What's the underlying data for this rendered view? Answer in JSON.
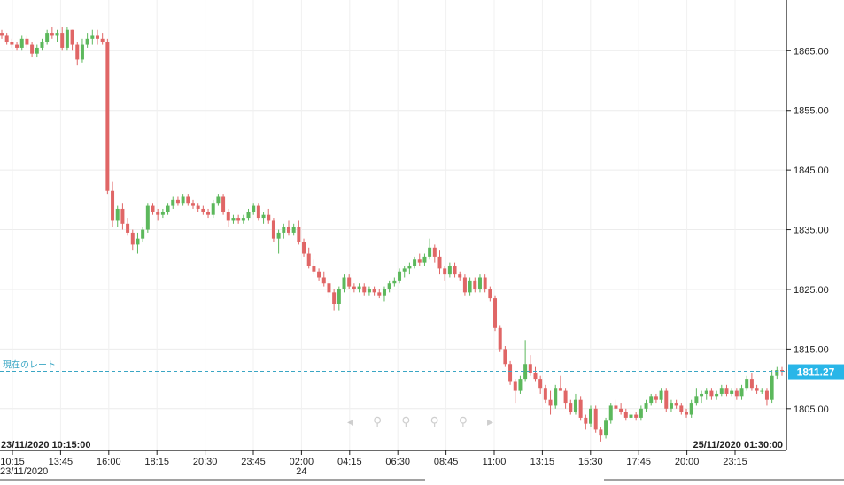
{
  "chart_data": {
    "type": "candlestick",
    "title": "",
    "xlabel": "",
    "ylabel": "",
    "ylim": [
      1798.0,
      1873.5
    ],
    "y_ticks": [
      "1865.00",
      "1855.00",
      "1845.00",
      "1835.00",
      "1825.00",
      "1815.00",
      "1805.00"
    ],
    "x_ticks": [
      "10:15",
      "13:45",
      "16:00",
      "18:15",
      "20:30",
      "23:45",
      "02:00",
      "04:15",
      "06:30",
      "08:45",
      "11:00",
      "13:15",
      "15:30",
      "17:45",
      "20:00",
      "23:15"
    ],
    "date_labels": [
      {
        "text": "23/11/2020",
        "at_tick": "10:15"
      },
      {
        "text": "24",
        "at_tick": "02:00"
      }
    ],
    "range_start": "23/11/2020 10:15:00",
    "range_end": "25/11/2020 01:30:00",
    "current_rate_label": "現在のレート",
    "current_rate": 1811.27,
    "current_rate_text": "1811.27",
    "grid": true,
    "colors": {
      "up": "#5cb85c",
      "down": "#e06666",
      "rate_line": "#3aa6c4",
      "rate_badge": "#29b6e8"
    },
    "candles": [
      [
        1868.0,
        1868.5,
        1867.0,
        1867.5
      ],
      [
        1867.5,
        1868.0,
        1866.0,
        1866.5
      ],
      [
        1866.5,
        1867.0,
        1865.5,
        1866.0
      ],
      [
        1866.0,
        1866.5,
        1865.0,
        1865.5
      ],
      [
        1865.5,
        1867.5,
        1865.0,
        1867.0
      ],
      [
        1867.0,
        1867.5,
        1865.5,
        1866.0
      ],
      [
        1866.0,
        1866.5,
        1864.0,
        1864.5
      ],
      [
        1864.5,
        1866.0,
        1864.0,
        1865.5
      ],
      [
        1865.5,
        1867.0,
        1865.0,
        1866.5
      ],
      [
        1866.5,
        1868.5,
        1866.0,
        1868.0
      ],
      [
        1868.0,
        1869.0,
        1867.0,
        1867.5
      ],
      [
        1867.5,
        1868.5,
        1866.5,
        1868.0
      ],
      [
        1868.0,
        1869.0,
        1865.0,
        1865.5
      ],
      [
        1865.5,
        1869.0,
        1865.0,
        1868.5
      ],
      [
        1868.5,
        1868.5,
        1865.0,
        1866.0
      ],
      [
        1866.0,
        1866.5,
        1862.5,
        1863.5
      ],
      [
        1863.5,
        1867.0,
        1863.0,
        1866.0
      ],
      [
        1866.0,
        1868.0,
        1865.5,
        1867.0
      ],
      [
        1867.0,
        1868.5,
        1866.0,
        1867.5
      ],
      [
        1867.5,
        1868.5,
        1866.0,
        1867.0
      ],
      [
        1867.0,
        1868.0,
        1866.0,
        1866.5
      ],
      [
        1866.5,
        1867.0,
        1841.0,
        1841.5
      ],
      [
        1841.5,
        1843.0,
        1835.5,
        1836.5
      ],
      [
        1836.5,
        1839.0,
        1835.5,
        1838.5
      ],
      [
        1838.5,
        1839.5,
        1835.0,
        1836.0
      ],
      [
        1836.0,
        1837.0,
        1834.0,
        1834.5
      ],
      [
        1834.5,
        1835.0,
        1831.5,
        1832.5
      ],
      [
        1832.5,
        1834.5,
        1831.0,
        1833.5
      ],
      [
        1833.5,
        1835.5,
        1833.0,
        1835.0
      ],
      [
        1835.0,
        1839.5,
        1834.5,
        1839.0
      ],
      [
        1839.0,
        1839.5,
        1837.5,
        1838.0
      ],
      [
        1838.0,
        1838.5,
        1836.5,
        1837.5
      ],
      [
        1837.5,
        1838.5,
        1837.0,
        1838.0
      ],
      [
        1838.0,
        1839.5,
        1837.5,
        1839.0
      ],
      [
        1839.0,
        1840.5,
        1838.5,
        1840.0
      ],
      [
        1840.0,
        1840.5,
        1839.0,
        1839.5
      ],
      [
        1839.5,
        1841.0,
        1839.0,
        1840.5
      ],
      [
        1840.5,
        1841.0,
        1839.0,
        1839.5
      ],
      [
        1839.5,
        1840.0,
        1838.5,
        1839.0
      ],
      [
        1839.0,
        1839.5,
        1838.0,
        1838.5
      ],
      [
        1838.5,
        1839.0,
        1837.5,
        1838.0
      ],
      [
        1838.0,
        1838.5,
        1837.0,
        1837.5
      ],
      [
        1837.5,
        1840.0,
        1837.0,
        1839.5
      ],
      [
        1839.5,
        1841.0,
        1839.0,
        1840.5
      ],
      [
        1840.5,
        1841.0,
        1837.5,
        1838.0
      ],
      [
        1838.0,
        1838.5,
        1835.5,
        1836.5
      ],
      [
        1836.5,
        1837.5,
        1836.0,
        1837.0
      ],
      [
        1837.0,
        1837.5,
        1836.0,
        1836.5
      ],
      [
        1836.5,
        1837.5,
        1836.0,
        1837.0
      ],
      [
        1837.0,
        1838.5,
        1836.5,
        1838.0
      ],
      [
        1838.0,
        1839.5,
        1837.5,
        1839.0
      ],
      [
        1839.0,
        1839.5,
        1836.5,
        1837.0
      ],
      [
        1837.0,
        1838.0,
        1836.0,
        1837.5
      ],
      [
        1837.5,
        1838.5,
        1836.0,
        1836.5
      ],
      [
        1836.5,
        1837.0,
        1833.0,
        1833.5
      ],
      [
        1833.5,
        1835.0,
        1831.0,
        1834.5
      ],
      [
        1834.5,
        1836.0,
        1833.5,
        1835.5
      ],
      [
        1835.5,
        1836.5,
        1834.0,
        1834.5
      ],
      [
        1834.5,
        1836.0,
        1834.0,
        1835.5
      ],
      [
        1835.5,
        1836.5,
        1832.5,
        1833.0
      ],
      [
        1833.0,
        1833.5,
        1830.5,
        1831.0
      ],
      [
        1831.0,
        1832.0,
        1828.5,
        1829.0
      ],
      [
        1829.0,
        1830.0,
        1827.5,
        1828.0
      ],
      [
        1828.0,
        1828.5,
        1826.5,
        1827.0
      ],
      [
        1827.0,
        1828.0,
        1825.5,
        1826.0
      ],
      [
        1826.0,
        1826.5,
        1823.5,
        1824.5
      ],
      [
        1824.5,
        1825.0,
        1821.5,
        1822.5
      ],
      [
        1822.5,
        1825.5,
        1821.5,
        1825.0
      ],
      [
        1825.0,
        1827.5,
        1824.5,
        1827.0
      ],
      [
        1827.0,
        1827.5,
        1825.0,
        1825.5
      ],
      [
        1825.5,
        1826.0,
        1824.5,
        1825.0
      ],
      [
        1825.0,
        1826.0,
        1824.5,
        1825.5
      ],
      [
        1825.5,
        1826.0,
        1824.0,
        1824.5
      ],
      [
        1824.5,
        1825.5,
        1824.0,
        1825.0
      ],
      [
        1825.0,
        1825.5,
        1824.0,
        1824.5
      ],
      [
        1824.5,
        1825.0,
        1823.5,
        1824.0
      ],
      [
        1824.0,
        1825.5,
        1823.0,
        1825.0
      ],
      [
        1825.0,
        1826.5,
        1824.5,
        1826.0
      ],
      [
        1826.0,
        1827.0,
        1825.5,
        1826.5
      ],
      [
        1826.5,
        1828.5,
        1826.0,
        1828.0
      ],
      [
        1828.0,
        1829.0,
        1827.0,
        1828.5
      ],
      [
        1828.5,
        1829.5,
        1827.5,
        1829.0
      ],
      [
        1829.0,
        1830.5,
        1828.5,
        1830.0
      ],
      [
        1830.0,
        1831.0,
        1829.0,
        1829.5
      ],
      [
        1829.5,
        1831.0,
        1829.0,
        1830.5
      ],
      [
        1830.5,
        1833.5,
        1830.0,
        1832.0
      ],
      [
        1832.0,
        1832.5,
        1829.5,
        1830.5
      ],
      [
        1830.5,
        1831.5,
        1827.5,
        1828.5
      ],
      [
        1828.5,
        1829.0,
        1826.5,
        1827.5
      ],
      [
        1827.5,
        1829.5,
        1827.0,
        1829.0
      ],
      [
        1829.0,
        1829.5,
        1827.0,
        1827.5
      ],
      [
        1827.5,
        1828.0,
        1826.5,
        1827.0
      ],
      [
        1827.0,
        1827.5,
        1824.0,
        1824.5
      ],
      [
        1824.5,
        1827.0,
        1824.0,
        1826.5
      ],
      [
        1826.5,
        1827.0,
        1824.5,
        1825.0
      ],
      [
        1825.0,
        1827.5,
        1824.5,
        1827.0
      ],
      [
        1827.0,
        1827.5,
        1824.5,
        1825.0
      ],
      [
        1825.0,
        1825.5,
        1823.0,
        1823.5
      ],
      [
        1823.5,
        1824.0,
        1818.0,
        1818.5
      ],
      [
        1818.5,
        1819.0,
        1814.5,
        1815.0
      ],
      [
        1815.0,
        1815.5,
        1812.0,
        1812.5
      ],
      [
        1812.5,
        1813.0,
        1809.0,
        1809.5
      ],
      [
        1809.5,
        1810.0,
        1806.0,
        1808.0
      ],
      [
        1808.0,
        1810.5,
        1807.5,
        1810.0
      ],
      [
        1810.0,
        1816.5,
        1809.5,
        1812.5
      ],
      [
        1812.5,
        1814.0,
        1810.5,
        1811.0
      ],
      [
        1811.0,
        1812.0,
        1809.5,
        1810.0
      ],
      [
        1810.0,
        1810.5,
        1807.5,
        1808.5
      ],
      [
        1808.5,
        1809.0,
        1806.0,
        1806.5
      ],
      [
        1806.5,
        1808.0,
        1804.0,
        1805.5
      ],
      [
        1805.5,
        1809.0,
        1805.0,
        1808.5
      ],
      [
        1808.5,
        1810.5,
        1808.0,
        1808.0
      ],
      [
        1808.0,
        1808.5,
        1805.0,
        1806.0
      ],
      [
        1806.0,
        1806.5,
        1804.0,
        1804.5
      ],
      [
        1804.5,
        1807.5,
        1804.0,
        1806.5
      ],
      [
        1806.5,
        1807.0,
        1803.0,
        1803.5
      ],
      [
        1803.5,
        1804.0,
        1801.5,
        1802.5
      ],
      [
        1802.5,
        1805.5,
        1802.0,
        1805.0
      ],
      [
        1805.0,
        1805.5,
        1801.0,
        1801.5
      ],
      [
        1801.5,
        1802.0,
        1799.5,
        1800.5
      ],
      [
        1800.5,
        1803.5,
        1800.0,
        1803.0
      ],
      [
        1803.0,
        1806.0,
        1802.5,
        1805.5
      ],
      [
        1805.5,
        1806.5,
        1804.5,
        1805.0
      ],
      [
        1805.0,
        1806.0,
        1804.0,
        1804.5
      ],
      [
        1804.5,
        1805.0,
        1803.0,
        1803.5
      ],
      [
        1803.5,
        1804.5,
        1803.0,
        1804.0
      ],
      [
        1804.0,
        1804.5,
        1803.0,
        1803.5
      ],
      [
        1803.5,
        1805.5,
        1803.0,
        1805.0
      ],
      [
        1805.0,
        1806.5,
        1804.5,
        1806.0
      ],
      [
        1806.0,
        1807.5,
        1805.5,
        1807.0
      ],
      [
        1807.0,
        1807.5,
        1806.0,
        1806.5
      ],
      [
        1806.5,
        1808.5,
        1806.0,
        1808.0
      ],
      [
        1808.0,
        1808.5,
        1804.5,
        1805.0
      ],
      [
        1805.0,
        1806.5,
        1804.5,
        1806.0
      ],
      [
        1806.0,
        1806.5,
        1805.0,
        1805.5
      ],
      [
        1805.5,
        1806.0,
        1804.0,
        1804.5
      ],
      [
        1804.5,
        1805.0,
        1803.5,
        1804.0
      ],
      [
        1804.0,
        1806.5,
        1803.5,
        1806.0
      ],
      [
        1806.0,
        1808.5,
        1805.5,
        1807.0
      ],
      [
        1807.0,
        1808.0,
        1806.0,
        1807.5
      ],
      [
        1807.5,
        1808.5,
        1806.5,
        1808.0
      ],
      [
        1808.0,
        1808.5,
        1806.5,
        1807.0
      ],
      [
        1807.0,
        1808.0,
        1806.5,
        1807.5
      ],
      [
        1807.5,
        1809.0,
        1807.0,
        1808.5
      ],
      [
        1808.5,
        1809.0,
        1807.0,
        1807.5
      ],
      [
        1807.5,
        1808.5,
        1807.0,
        1808.0
      ],
      [
        1808.0,
        1808.5,
        1806.5,
        1807.0
      ],
      [
        1807.0,
        1809.0,
        1806.5,
        1808.5
      ],
      [
        1808.5,
        1810.5,
        1808.0,
        1810.0
      ],
      [
        1810.0,
        1811.0,
        1808.0,
        1808.5
      ],
      [
        1808.5,
        1809.0,
        1807.5,
        1808.0
      ],
      [
        1808.0,
        1808.5,
        1807.5,
        1808.0
      ],
      [
        1808.0,
        1808.5,
        1805.5,
        1806.5
      ],
      [
        1806.5,
        1811.5,
        1806.0,
        1810.5
      ],
      [
        1810.5,
        1812.0,
        1810.0,
        1811.5
      ],
      [
        1811.5,
        1812.0,
        1810.5,
        1811.27
      ]
    ]
  }
}
